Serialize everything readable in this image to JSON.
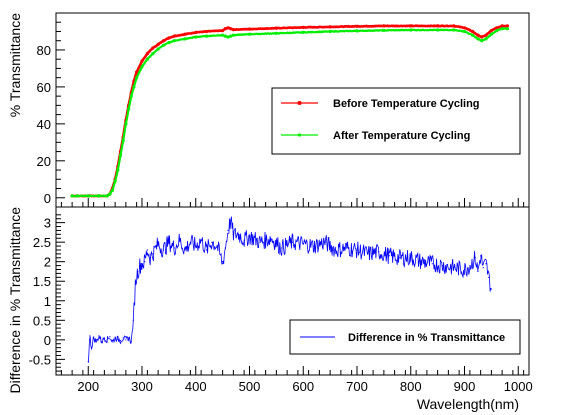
{
  "chart_data": [
    {
      "type": "line",
      "title": "",
      "xlabel": "",
      "ylabel": "% Transmittance",
      "xlim": [
        140,
        1020
      ],
      "ylim": [
        -5,
        100
      ],
      "yticks": [
        0,
        20,
        40,
        60,
        80
      ],
      "grid": false,
      "legend": {
        "placement": "right-middle"
      },
      "series": [
        {
          "name": "Before Temperature Cycling",
          "color": "#ff0000",
          "x": [
            170,
            180,
            200,
            220,
            235,
            240,
            245,
            250,
            255,
            260,
            265,
            270,
            275,
            280,
            285,
            290,
            300,
            310,
            320,
            330,
            340,
            350,
            360,
            380,
            400,
            420,
            450,
            455,
            460,
            465,
            470,
            500,
            550,
            600,
            650,
            700,
            750,
            800,
            850,
            880,
            900,
            915,
            925,
            932,
            940,
            950,
            960,
            970,
            980
          ],
          "y": [
            1,
            1,
            1,
            1,
            1,
            2,
            5,
            10,
            17,
            25,
            33,
            42,
            50,
            57,
            63,
            68,
            74,
            78,
            81,
            83,
            85,
            86.5,
            87.5,
            88.5,
            89.5,
            90,
            90.5,
            91.5,
            92,
            91.5,
            91,
            91.3,
            91.8,
            92.2,
            92.5,
            92.8,
            93,
            93,
            93,
            93,
            92,
            90,
            88,
            87,
            88,
            90.5,
            92,
            93,
            93
          ]
        },
        {
          "name": "After Temperature Cycling",
          "color": "#00ee00",
          "x": [
            170,
            180,
            200,
            220,
            235,
            240,
            245,
            250,
            255,
            260,
            265,
            270,
            275,
            280,
            285,
            290,
            300,
            310,
            320,
            330,
            340,
            350,
            360,
            380,
            400,
            420,
            450,
            455,
            460,
            465,
            470,
            500,
            550,
            600,
            650,
            700,
            750,
            800,
            850,
            880,
            900,
            915,
            925,
            932,
            940,
            950,
            960,
            970,
            980
          ],
          "y": [
            1,
            1,
            1,
            1,
            1,
            2,
            4,
            9,
            15,
            23,
            31,
            40,
            48,
            55,
            60,
            65,
            71,
            75,
            78,
            80.5,
            82.5,
            84,
            85,
            86,
            87,
            87.5,
            88,
            87.5,
            87,
            87.5,
            88,
            88.5,
            89,
            89.5,
            90,
            90.3,
            90.6,
            90.8,
            90.8,
            90.8,
            90,
            88,
            86,
            85,
            86,
            88.5,
            90.5,
            91.5,
            91.5
          ]
        }
      ]
    },
    {
      "type": "line",
      "title": "",
      "xlabel": "Wavelength(nm)",
      "ylabel": "Difference in % Transmittance",
      "xlim": [
        140,
        1020
      ],
      "ylim": [
        -0.9,
        3.4
      ],
      "xticks": [
        200,
        300,
        400,
        500,
        600,
        700,
        800,
        900,
        1000
      ],
      "yticks": [
        -0.5,
        0,
        0.5,
        1,
        1.5,
        2,
        2.5,
        3
      ],
      "ytick_labels": [
        "-0.5",
        "0",
        "0.5",
        "1",
        "1.5",
        "2",
        "2.5",
        "3"
      ],
      "grid": false,
      "legend": {
        "placement": "bottom-right"
      },
      "series": [
        {
          "name": "Difference in % Transmittance",
          "color": "#0000ff",
          "x": [
            200,
            203,
            206,
            210,
            215,
            220,
            225,
            230,
            235,
            240,
            245,
            250,
            255,
            260,
            265,
            270,
            275,
            280,
            284,
            288,
            292,
            296,
            300,
            305,
            310,
            315,
            320,
            330,
            340,
            350,
            360,
            370,
            380,
            390,
            400,
            410,
            420,
            430,
            440,
            450,
            455,
            460,
            465,
            470,
            480,
            490,
            500,
            520,
            540,
            560,
            580,
            600,
            620,
            640,
            660,
            680,
            700,
            720,
            740,
            760,
            780,
            800,
            820,
            840,
            860,
            880,
            900,
            910,
            920,
            925,
            930,
            935,
            940,
            945,
            950
          ],
          "y": [
            -0.55,
            0.1,
            -0.2,
            0.05,
            -0.05,
            0.1,
            -0.05,
            0.05,
            0.0,
            0.08,
            -0.05,
            0.05,
            0.02,
            -0.02,
            0.05,
            0.0,
            0.05,
            -0.05,
            0.5,
            1.5,
            1.75,
            1.9,
            1.95,
            2.0,
            2.3,
            2.1,
            2.2,
            2.45,
            2.3,
            2.5,
            2.35,
            2.55,
            2.3,
            2.5,
            2.4,
            2.55,
            2.3,
            2.5,
            2.4,
            1.95,
            2.35,
            2.8,
            3.05,
            2.7,
            2.7,
            2.55,
            2.65,
            2.5,
            2.6,
            2.35,
            2.5,
            2.45,
            2.4,
            2.5,
            2.3,
            2.35,
            2.3,
            2.2,
            2.25,
            2.15,
            2.1,
            2.1,
            2.0,
            1.95,
            1.9,
            1.85,
            1.8,
            1.9,
            2.1,
            1.75,
            2.15,
            1.85,
            1.95,
            1.6,
            1.3
          ]
        }
      ]
    }
  ]
}
